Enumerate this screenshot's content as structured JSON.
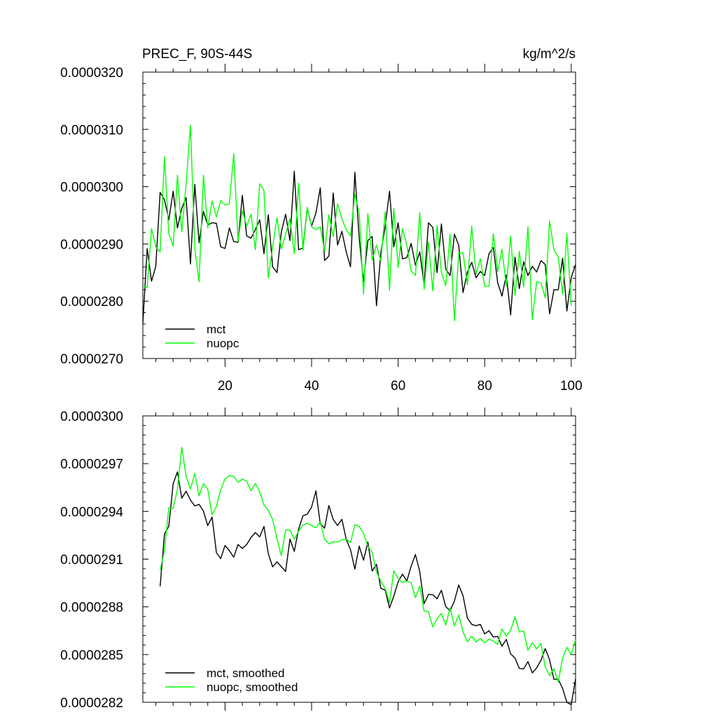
{
  "chart_data": [
    {
      "type": "line",
      "title": "PREC_F, 90S-44S",
      "units": "kg/m^2/s",
      "xlabel": "",
      "ylabel": "",
      "xlim": [
        1,
        101
      ],
      "ylim": [
        2.7e-05,
        3.2e-05
      ],
      "x_ticks": [
        20,
        40,
        60,
        80,
        100
      ],
      "x_tick_labels": [
        "20",
        "40",
        "60",
        "80",
        "100"
      ],
      "y_ticks": [
        2.7e-05,
        2.8e-05,
        2.9e-05,
        3e-05,
        3.1e-05,
        3.2e-05
      ],
      "y_tick_labels": [
        "0.0000270",
        "0.0000280",
        "0.0000290",
        "0.0000300",
        "0.0000310",
        "0.0000320"
      ],
      "legend_position": "bottom-left",
      "grid": false,
      "colors": {
        "mct": "#000000",
        "nuopc": "#00ff00"
      },
      "series": [
        {
          "name": "mct",
          "color": "#000000",
          "values": [
            2.761e-05,
            2.892e-05,
            2.835e-05,
            2.861e-05,
            2.99e-05,
            2.977e-05,
            2.942e-05,
            2.992e-05,
            2.928e-05,
            2.962e-05,
            2.981e-05,
            2.865e-05,
            3.004e-05,
            2.902e-05,
            2.957e-05,
            2.933e-05,
            2.937e-05,
            2.936e-05,
            2.895e-05,
            2.892e-05,
            2.928e-05,
            2.904e-05,
            2.903e-05,
            2.985e-05,
            2.914e-05,
            2.91e-05,
            2.925e-05,
            2.942e-05,
            2.883e-05,
            2.951e-05,
            2.86e-05,
            2.85e-05,
            2.921e-05,
            2.952e-05,
            2.906e-05,
            3.027e-05,
            2.89e-05,
            2.893e-05,
            2.962e-05,
            2.931e-05,
            2.954e-05,
            2.998e-05,
            2.871e-05,
            2.879e-05,
            2.989e-05,
            2.898e-05,
            2.922e-05,
            2.886e-05,
            2.86e-05,
            3.025e-05,
            2.91e-05,
            2.834e-05,
            2.906e-05,
            2.913e-05,
            2.792e-05,
            2.885e-05,
            2.93e-05,
            2.992e-05,
            2.895e-05,
            2.937e-05,
            2.874e-05,
            2.876e-05,
            2.901e-05,
            2.863e-05,
            2.886e-05,
            2.829e-05,
            2.937e-05,
            2.929e-05,
            2.85e-05,
            2.935e-05,
            2.856e-05,
            2.845e-05,
            2.917e-05,
            2.898e-05,
            2.815e-05,
            2.851e-05,
            2.868e-05,
            2.841e-05,
            2.852e-05,
            2.845e-05,
            2.883e-05,
            2.894e-05,
            2.832e-05,
            2.809e-05,
            2.846e-05,
            2.776e-05,
            2.877e-05,
            2.822e-05,
            2.869e-05,
            2.845e-05,
            2.861e-05,
            2.851e-05,
            2.871e-05,
            2.864e-05,
            2.778e-05,
            2.82e-05,
            2.82e-05,
            2.875e-05,
            2.783e-05,
            2.841e-05,
            2.864e-05
          ]
        },
        {
          "name": "nuopc",
          "color": "#00ff00",
          "values": [
            2.826e-05,
            2.824e-05,
            2.927e-05,
            2.895e-05,
            2.886e-05,
            3.052e-05,
            2.918e-05,
            2.896e-05,
            3.02e-05,
            2.921e-05,
            3.005e-05,
            3.107e-05,
            2.893e-05,
            2.834e-05,
            3.02e-05,
            2.928e-05,
            2.975e-05,
            2.947e-05,
            2.976e-05,
            2.968e-05,
            2.97e-05,
            3.058e-05,
            2.905e-05,
            2.958e-05,
            2.931e-05,
            2.952e-05,
            2.89e-05,
            3.005e-05,
            2.993e-05,
            2.841e-05,
            2.895e-05,
            2.946e-05,
            2.891e-05,
            2.917e-05,
            2.944e-05,
            2.883e-05,
            3.006e-05,
            2.889e-05,
            2.964e-05,
            2.93e-05,
            2.925e-05,
            2.93e-05,
            2.887e-05,
            2.951e-05,
            2.913e-05,
            2.97e-05,
            2.944e-05,
            2.925e-05,
            2.914e-05,
            2.987e-05,
            2.954e-05,
            2.813e-05,
            2.953e-05,
            2.872e-05,
            2.898e-05,
            2.87e-05,
            2.956e-05,
            2.819e-05,
            2.962e-05,
            2.859e-05,
            2.927e-05,
            2.897e-05,
            2.853e-05,
            2.845e-05,
            2.955e-05,
            2.821e-05,
            2.903e-05,
            2.818e-05,
            2.932e-05,
            2.85e-05,
            2.827e-05,
            2.917e-05,
            2.766e-05,
            2.883e-05,
            2.885e-05,
            2.829e-05,
            2.931e-05,
            2.848e-05,
            2.874e-05,
            2.826e-05,
            2.826e-05,
            2.918e-05,
            2.852e-05,
            2.891e-05,
            2.826e-05,
            2.914e-05,
            2.81e-05,
            2.887e-05,
            2.825e-05,
            2.93e-05,
            2.768e-05,
            2.834e-05,
            2.832e-05,
            2.806e-05,
            2.94e-05,
            2.89e-05,
            2.877e-05,
            2.812e-05,
            2.918e-05,
            2.792e-05
          ]
        }
      ]
    },
    {
      "type": "line",
      "title": "",
      "xlabel": "",
      "ylabel": "",
      "xlim": [
        1,
        101
      ],
      "ylim": [
        2.82e-05,
        3e-05
      ],
      "x_ticks": [
        20,
        40,
        60,
        80,
        100
      ],
      "y_ticks": [
        2.82e-05,
        2.85e-05,
        2.88e-05,
        2.91e-05,
        2.94e-05,
        2.97e-05,
        3e-05
      ],
      "y_tick_labels": [
        "0.0000282",
        "0.0000285",
        "0.0000288",
        "0.0000291",
        "0.0000294",
        "0.0000297",
        "0.0000300"
      ],
      "legend_position": "bottom-left",
      "grid": false,
      "colors": {
        "mct": "#000000",
        "nuopc": "#00ff00"
      },
      "series": [
        {
          "name": "mct, smoothed",
          "color": "#000000",
          "x_start": 5,
          "values": [
            2.8929e-05,
            2.9258e-05,
            2.9306e-05,
            2.9574e-05,
            2.9648e-05,
            2.9483e-05,
            2.9527e-05,
            2.9471e-05,
            2.9434e-05,
            2.9444e-05,
            2.9402e-05,
            2.9311e-05,
            2.9364e-05,
            2.914e-05,
            2.9103e-05,
            2.9186e-05,
            2.9153e-05,
            2.9112e-05,
            2.9192e-05,
            2.9167e-05,
            2.9192e-05,
            2.9236e-05,
            2.9267e-05,
            2.924e-05,
            2.9305e-05,
            2.9134e-05,
            2.9051e-05,
            2.9083e-05,
            2.9052e-05,
            2.9022e-05,
            2.9226e-05,
            2.9149e-05,
            2.9289e-05,
            2.9372e-05,
            2.9382e-05,
            2.9427e-05,
            2.9529e-05,
            2.9322e-05,
            2.9295e-05,
            2.9437e-05,
            2.9349e-05,
            2.9311e-05,
            2.935e-05,
            2.9224e-05,
            2.9159e-05,
            2.9037e-05,
            2.9182e-05,
            2.9093e-05,
            2.9207e-05,
            2.9025e-05,
            2.9067e-05,
            2.8917e-05,
            2.8905e-05,
            2.8793e-05,
            2.8867e-05,
            2.8958e-05,
            2.9006e-05,
            2.8962e-05,
            2.9056e-05,
            2.9129e-05,
            2.9021e-05,
            2.882e-05,
            2.8878e-05,
            2.8876e-05,
            2.8851e-05,
            2.8904e-05,
            2.8801e-05,
            2.8776e-05,
            2.8836e-05,
            2.8937e-05,
            2.887e-05,
            2.873e-05,
            2.869e-05,
            2.8681e-05,
            2.869e-05,
            2.863e-05,
            2.865e-05,
            2.861e-05,
            2.8614e-05,
            2.8553e-05,
            2.8595e-05,
            2.8504e-05,
            2.8478e-05,
            2.8413e-05,
            2.841e-05,
            2.8456e-05,
            2.8385e-05,
            2.8416e-05,
            2.8464e-05,
            2.8538e-05,
            2.8467e-05,
            2.8345e-05,
            2.8345e-05,
            2.8287e-05,
            2.82e-05,
            2.8185e-05,
            2.8347e-05
          ]
        },
        {
          "name": "nuopc, smoothed",
          "color": "#00ff00",
          "x_start": 5,
          "values": [
            2.903e-05,
            2.9154e-05,
            2.9424e-05,
            2.9419e-05,
            2.9538e-05,
            2.9803e-05,
            2.9621e-05,
            2.954e-05,
            2.9639e-05,
            2.9498e-05,
            2.9575e-05,
            2.9539e-05,
            2.9379e-05,
            2.9432e-05,
            2.9535e-05,
            2.9605e-05,
            2.9624e-05,
            2.9621e-05,
            2.9583e-05,
            2.9603e-05,
            2.9589e-05,
            2.953e-05,
            2.9575e-05,
            2.9522e-05,
            2.944e-05,
            2.9407e-05,
            2.9348e-05,
            2.9227e-05,
            2.9122e-05,
            2.9283e-05,
            2.9282e-05,
            2.9225e-05,
            2.9276e-05,
            2.9314e-05,
            2.9325e-05,
            2.9312e-05,
            2.9297e-05,
            2.9335e-05,
            2.9225e-05,
            2.9196e-05,
            2.9209e-05,
            2.9207e-05,
            2.922e-05,
            2.9226e-05,
            2.9203e-05,
            2.9316e-05,
            2.9306e-05,
            2.9262e-05,
            2.9181e-05,
            2.9142e-05,
            2.9019e-05,
            2.8961e-05,
            2.8915e-05,
            2.8825e-05,
            2.9027e-05,
            2.8979e-05,
            2.8953e-05,
            2.8962e-05,
            2.8952e-05,
            2.8858e-05,
            2.8931e-05,
            2.8774e-05,
            2.877e-05,
            2.8674e-05,
            2.8725e-05,
            2.8758e-05,
            2.8686e-05,
            2.8794e-05,
            2.868e-05,
            2.8749e-05,
            2.8643e-05,
            2.858e-05,
            2.8615e-05,
            2.858e-05,
            2.8601e-05,
            2.8574e-05,
            2.8598e-05,
            2.8584e-05,
            2.8564e-05,
            2.8661e-05,
            2.8616e-05,
            2.8653e-05,
            2.8737e-05,
            2.8642e-05,
            2.8649e-05,
            2.8527e-05,
            2.8575e-05,
            2.8536e-05,
            2.857e-05,
            2.8422e-05,
            2.8368e-05,
            2.8411e-05,
            2.8328e-05,
            2.8479e-05,
            2.8546e-05,
            2.8501e-05,
            2.8592e-05
          ]
        }
      ]
    }
  ]
}
